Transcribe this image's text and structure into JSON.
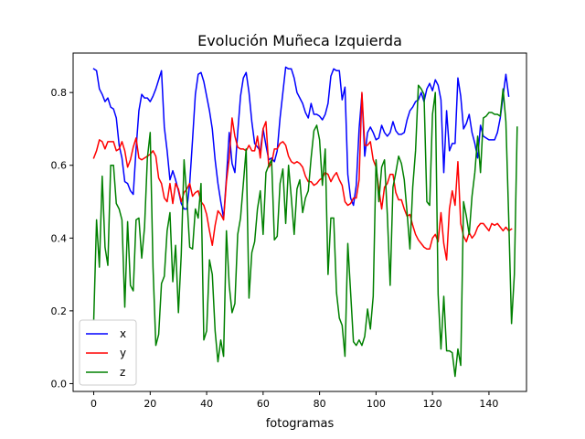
{
  "chart_data": {
    "type": "line",
    "title": "Evolución Muñeca Izquierda",
    "xlabel": "fotogramas",
    "ylabel": "",
    "xlim": [
      -7.3,
      153.3
    ],
    "ylim": [
      -0.0215,
      0.9085
    ],
    "xticks": [
      0,
      20,
      40,
      60,
      80,
      100,
      120,
      140
    ],
    "yticks": [
      0.0,
      0.2,
      0.4,
      0.6,
      0.8
    ],
    "ytick_labels": [
      "0.0",
      "0.2",
      "0.4",
      "0.6",
      "0.8"
    ],
    "grid": false,
    "legend_position": "lower-left",
    "series": [
      {
        "name": "x",
        "color": "#0000ff",
        "values": [
          0.865,
          0.86,
          0.81,
          0.795,
          0.775,
          0.785,
          0.76,
          0.755,
          0.73,
          0.655,
          0.62,
          0.555,
          0.55,
          0.53,
          0.52,
          0.645,
          0.75,
          0.795,
          0.785,
          0.785,
          0.775,
          0.79,
          0.81,
          0.835,
          0.86,
          0.705,
          0.64,
          0.56,
          0.585,
          0.56,
          0.53,
          0.495,
          0.48,
          0.48,
          0.55,
          0.67,
          0.795,
          0.85,
          0.855,
          0.83,
          0.79,
          0.75,
          0.7,
          0.615,
          0.55,
          0.5,
          0.455,
          0.565,
          0.69,
          0.605,
          0.58,
          0.69,
          0.79,
          0.84,
          0.855,
          0.8,
          0.72,
          0.66,
          0.65,
          0.64,
          0.7,
          0.655,
          0.615,
          0.62,
          0.61,
          0.64,
          0.73,
          0.8,
          0.87,
          0.865,
          0.865,
          0.84,
          0.8,
          0.785,
          0.77,
          0.745,
          0.73,
          0.77,
          0.74,
          0.74,
          0.735,
          0.725,
          0.74,
          0.77,
          0.845,
          0.865,
          0.86,
          0.86,
          0.78,
          0.815,
          0.575,
          0.51,
          0.49,
          0.545,
          0.7,
          0.795,
          0.625,
          0.69,
          0.705,
          0.69,
          0.67,
          0.675,
          0.71,
          0.69,
          0.68,
          0.69,
          0.72,
          0.695,
          0.685,
          0.685,
          0.69,
          0.725,
          0.75,
          0.76,
          0.775,
          0.78,
          0.8,
          0.775,
          0.81,
          0.825,
          0.805,
          0.835,
          0.82,
          0.78,
          0.58,
          0.75,
          0.64,
          0.66,
          0.66,
          0.84,
          0.79,
          0.7,
          0.715,
          0.74,
          0.69,
          0.66,
          0.62,
          0.71,
          0.68,
          0.675,
          0.67,
          0.67,
          0.67,
          0.69,
          0.73,
          0.79,
          0.85,
          0.79
        ]
      },
      {
        "name": "y",
        "color": "#ff0000",
        "values": [
          0.62,
          0.64,
          0.67,
          0.665,
          0.645,
          0.665,
          0.665,
          0.665,
          0.64,
          0.645,
          0.665,
          0.64,
          0.595,
          0.615,
          0.65,
          0.675,
          0.62,
          0.615,
          0.62,
          0.625,
          0.63,
          0.64,
          0.625,
          0.565,
          0.55,
          0.51,
          0.5,
          0.55,
          0.495,
          0.55,
          0.535,
          0.5,
          0.525,
          0.535,
          0.55,
          0.515,
          0.525,
          0.53,
          0.5,
          0.49,
          0.465,
          0.42,
          0.38,
          0.435,
          0.475,
          0.465,
          0.45,
          0.555,
          0.62,
          0.73,
          0.68,
          0.65,
          0.645,
          0.645,
          0.64,
          0.655,
          0.64,
          0.64,
          0.68,
          0.62,
          0.7,
          0.72,
          0.595,
          0.605,
          0.645,
          0.645,
          0.66,
          0.665,
          0.655,
          0.625,
          0.61,
          0.605,
          0.61,
          0.605,
          0.595,
          0.57,
          0.555,
          0.555,
          0.545,
          0.55,
          0.56,
          0.565,
          0.58,
          0.575,
          0.555,
          0.57,
          0.58,
          0.56,
          0.545,
          0.5,
          0.49,
          0.495,
          0.51,
          0.51,
          0.56,
          0.8,
          0.655,
          0.655,
          0.665,
          0.615,
          0.595,
          0.535,
          0.48,
          0.54,
          0.55,
          0.575,
          0.575,
          0.525,
          0.505,
          0.505,
          0.48,
          0.46,
          0.465,
          0.435,
          0.41,
          0.395,
          0.385,
          0.375,
          0.37,
          0.37,
          0.4,
          0.41,
          0.39,
          0.47,
          0.385,
          0.34,
          0.48,
          0.53,
          0.49,
          0.61,
          0.44,
          0.405,
          0.39,
          0.415,
          0.4,
          0.41,
          0.43,
          0.44,
          0.44,
          0.43,
          0.42,
          0.44,
          0.435,
          0.44,
          0.43,
          0.42,
          0.43,
          0.42,
          0.425
        ]
      },
      {
        "name": "z",
        "color": "#008000",
        "values": [
          0.175,
          0.45,
          0.32,
          0.57,
          0.375,
          0.325,
          0.6,
          0.6,
          0.495,
          0.48,
          0.45,
          0.21,
          0.445,
          0.27,
          0.255,
          0.45,
          0.455,
          0.345,
          0.43,
          0.62,
          0.69,
          0.32,
          0.105,
          0.135,
          0.275,
          0.295,
          0.42,
          0.47,
          0.28,
          0.38,
          0.195,
          0.355,
          0.615,
          0.51,
          0.375,
          0.37,
          0.48,
          0.455,
          0.55,
          0.12,
          0.145,
          0.34,
          0.3,
          0.145,
          0.06,
          0.12,
          0.075,
          0.42,
          0.27,
          0.195,
          0.22,
          0.41,
          0.455,
          0.55,
          0.645,
          0.235,
          0.36,
          0.39,
          0.48,
          0.53,
          0.41,
          0.58,
          0.6,
          0.615,
          0.395,
          0.405,
          0.55,
          0.59,
          0.44,
          0.6,
          0.51,
          0.41,
          0.535,
          0.56,
          0.47,
          0.51,
          0.53,
          0.62,
          0.695,
          0.71,
          0.67,
          0.545,
          0.645,
          0.3,
          0.455,
          0.455,
          0.25,
          0.18,
          0.16,
          0.075,
          0.385,
          0.25,
          0.115,
          0.105,
          0.12,
          0.105,
          0.13,
          0.205,
          0.15,
          0.24,
          0.615,
          0.5,
          0.595,
          0.615,
          0.465,
          0.27,
          0.54,
          0.58,
          0.625,
          0.605,
          0.56,
          0.47,
          0.37,
          0.54,
          0.64,
          0.82,
          0.81,
          0.795,
          0.5,
          0.49,
          0.74,
          0.8,
          0.245,
          0.095,
          0.24,
          0.09,
          0.09,
          0.085,
          0.02,
          0.095,
          0.05,
          0.5,
          0.46,
          0.41,
          0.515,
          0.58,
          0.68,
          0.58,
          0.73,
          0.735,
          0.745,
          0.745,
          0.74,
          0.74,
          0.735,
          0.81,
          0.72,
          0.455,
          0.165,
          0.3,
          0.705
        ]
      }
    ]
  }
}
